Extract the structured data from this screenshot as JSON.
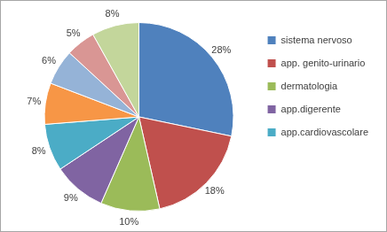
{
  "chart_data": {
    "type": "pie",
    "categories": [
      "sistema nervoso",
      "app. genito-urinario",
      "dermatologia",
      "app.digerente",
      "app.cardiovascolare",
      null,
      null,
      null,
      null
    ],
    "values": [
      28,
      18,
      10,
      9,
      8,
      7,
      6,
      5,
      8
    ],
    "value_labels": [
      "28%",
      "18%",
      "10%",
      "9%",
      "8%",
      "7%",
      "6%",
      "5%",
      "8%"
    ],
    "colors": [
      "#4f81bd",
      "#c0504d",
      "#9bbb59",
      "#8064a2",
      "#4bacc6",
      "#f79646",
      "#95b3d7",
      "#d99694",
      "#c3d69b"
    ],
    "data_labels": true,
    "legend": "right"
  }
}
